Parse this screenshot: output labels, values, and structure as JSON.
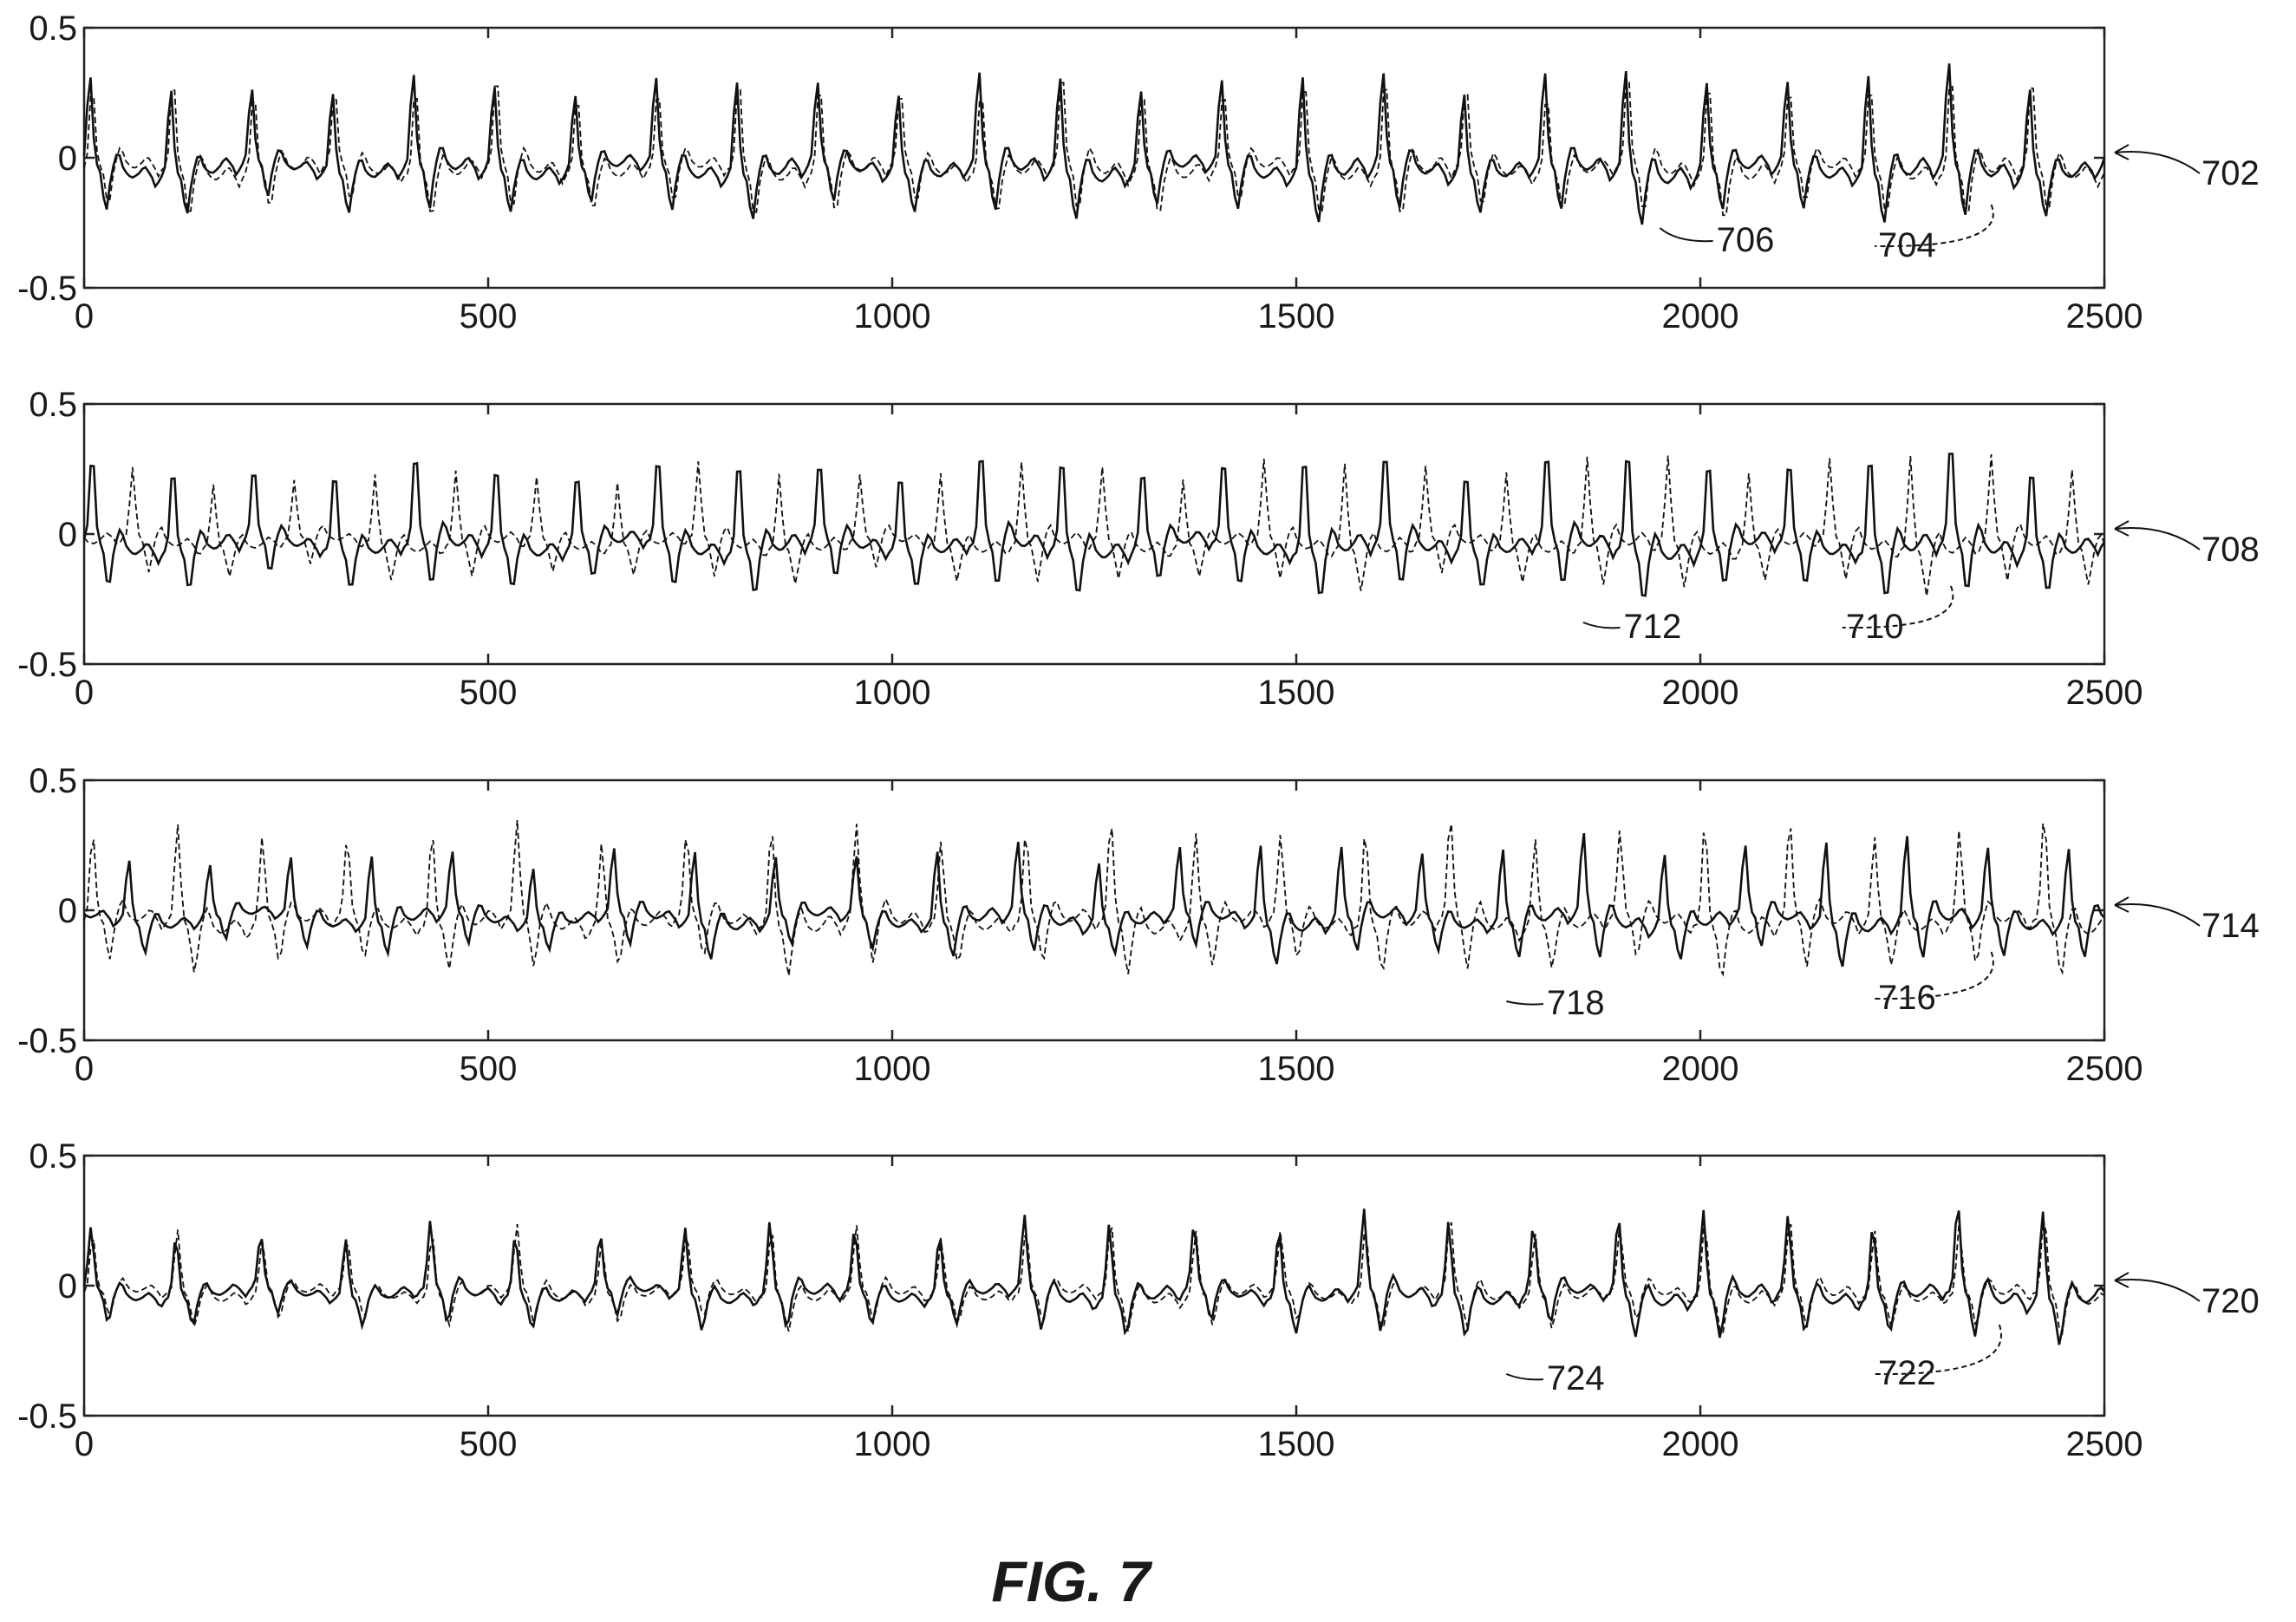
{
  "figure": {
    "caption": "FIG. 7"
  },
  "chart_data": [
    {
      "type": "line",
      "panel_ref": "702",
      "xlim": [
        0,
        2500
      ],
      "ylim": [
        -0.5,
        0.5
      ],
      "xticks": [
        "0",
        "500",
        "1000",
        "1500",
        "2000",
        "2500"
      ],
      "yticks": [
        "0.5",
        "0",
        "-0.5"
      ],
      "grid": false,
      "series": [
        {
          "ref": "704",
          "style": "dashed",
          "period": 100,
          "phase": 0,
          "amp": 0.33,
          "amp_growth": 0.02,
          "wobble": 0.05
        },
        {
          "ref": "706",
          "style": "solid",
          "period": 100,
          "phase": 3,
          "amp": 0.32,
          "amp_growth": 0.04,
          "wobble": 0.06
        }
      ],
      "callouts": [
        {
          "ref": "706",
          "x": 1950,
          "y": -0.27,
          "label_x": 2020,
          "label_y": -0.36,
          "style": "solid"
        },
        {
          "ref": "704",
          "x": 2360,
          "y": -0.18,
          "label_x": 2220,
          "label_y": -0.38,
          "style": "dashed"
        }
      ]
    },
    {
      "type": "line",
      "panel_ref": "708",
      "xlim": [
        0,
        2500
      ],
      "ylim": [
        -0.5,
        0.5
      ],
      "xticks": [
        "0",
        "500",
        "1000",
        "1500",
        "2000",
        "2500"
      ],
      "yticks": [
        "0.5",
        "0",
        "-0.5"
      ],
      "grid": false,
      "series": [
        {
          "ref": "710",
          "style": "dashed",
          "period": 100,
          "phase": 50,
          "amp": 0.24,
          "amp_growth": 0.08,
          "wobble": 0.05
        },
        {
          "ref": "712",
          "style": "solid",
          "period": 100,
          "phase": 0,
          "amp": 0.32,
          "amp_growth": 0.04,
          "wobble": 0.06
        }
      ],
      "callouts": [
        {
          "ref": "712",
          "x": 1855,
          "y": -0.34,
          "label_x": 1905,
          "label_y": -0.4,
          "style": "solid"
        },
        {
          "ref": "710",
          "x": 2310,
          "y": -0.2,
          "label_x": 2180,
          "label_y": -0.4,
          "style": "dashed"
        }
      ]
    },
    {
      "type": "line",
      "panel_ref": "714",
      "xlim": [
        0,
        2500
      ],
      "ylim": [
        -0.5,
        0.5
      ],
      "xticks": [
        "0",
        "500",
        "1000",
        "1500",
        "2000",
        "2500"
      ],
      "yticks": [
        "0.5",
        "0",
        "-0.5"
      ],
      "grid": false,
      "series": [
        {
          "ref": "716",
          "style": "dashed",
          "period": 105,
          "phase": 0,
          "amp": 0.34,
          "amp_growth": 0.02,
          "wobble": 0.05
        },
        {
          "ref": "718",
          "style": "solid",
          "period": 100,
          "phase": 55,
          "amp": 0.23,
          "amp_growth": 0.08,
          "wobble": 0.06
        }
      ],
      "callouts": [
        {
          "ref": "718",
          "x": 1760,
          "y": -0.35,
          "label_x": 1810,
          "label_y": -0.4,
          "style": "solid"
        },
        {
          "ref": "716",
          "x": 2360,
          "y": -0.16,
          "label_x": 2220,
          "label_y": -0.38,
          "style": "dashed"
        }
      ]
    },
    {
      "type": "line",
      "panel_ref": "720",
      "xlim": [
        0,
        2500
      ],
      "ylim": [
        -0.5,
        0.5
      ],
      "xticks": [
        "0",
        "500",
        "1000",
        "1500",
        "2000",
        "2500"
      ],
      "yticks": [
        "0.5",
        "0",
        "-0.5"
      ],
      "grid": false,
      "series": [
        {
          "ref": "722",
          "style": "dashed",
          "period": 105,
          "phase": 0,
          "amp": 0.22,
          "amp_growth": 0.06,
          "wobble": 0.04
        },
        {
          "ref": "724",
          "style": "solid",
          "period": 105,
          "phase": 2,
          "amp": 0.22,
          "amp_growth": 0.1,
          "wobble": 0.05
        }
      ],
      "callouts": [
        {
          "ref": "724",
          "x": 1760,
          "y": -0.34,
          "label_x": 1810,
          "label_y": -0.4,
          "style": "solid"
        },
        {
          "ref": "722",
          "x": 2370,
          "y": -0.15,
          "label_x": 2220,
          "label_y": -0.38,
          "style": "dashed"
        }
      ]
    }
  ]
}
